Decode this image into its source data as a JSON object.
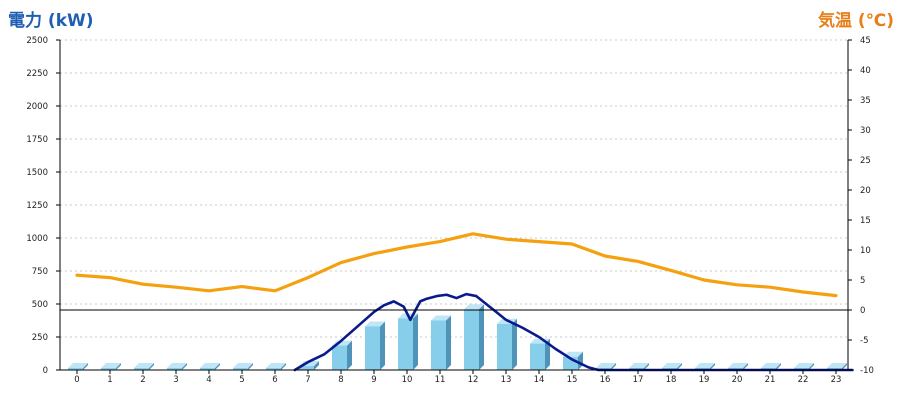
{
  "left_axis_title": "電力 (kW)",
  "right_axis_title": "気温 (℃)",
  "colors": {
    "left_title": "#1f5fb3",
    "right_title": "#e87f1a",
    "bar_front": "#87ceeb",
    "bar_side": "#4f93b8",
    "bar_top": "#bfe6f7",
    "power_line": "#0a1a8c",
    "temperature_line": "#f5a00f",
    "grid": "#c8c8c8"
  },
  "chart_data": {
    "type": "bar",
    "grid": true,
    "categories": [
      "0",
      "1",
      "2",
      "3",
      "4",
      "5",
      "6",
      "7",
      "8",
      "9",
      "10",
      "11",
      "12",
      "13",
      "14",
      "15",
      "16",
      "17",
      "18",
      "19",
      "20",
      "21",
      "22",
      "23"
    ],
    "y_left": {
      "label": "電力 (kW)",
      "lim": [
        0,
        2500
      ],
      "ticks": [
        0,
        250,
        500,
        750,
        1000,
        1250,
        1500,
        1750,
        2000,
        2250,
        2500
      ]
    },
    "y_right": {
      "label": "気温 (℃)",
      "lim": [
        -10,
        45
      ],
      "ticks": [
        -10,
        -5,
        0,
        5,
        10,
        15,
        20,
        25,
        30,
        35,
        40,
        45
      ]
    },
    "series": [
      {
        "kind": "bar",
        "axis": "left",
        "values": [
          0,
          0,
          0,
          0,
          0,
          0,
          0,
          30,
          185,
          330,
          390,
          375,
          460,
          350,
          200,
          100,
          0,
          0,
          0,
          0,
          0,
          0,
          0,
          0
        ]
      },
      {
        "kind": "line",
        "axis": "left",
        "x": [
          6.6,
          7,
          7.5,
          8,
          8.5,
          9,
          9.3,
          9.6,
          9.9,
          10.1,
          10.4,
          10.6,
          10.9,
          11.2,
          11.5,
          11.8,
          12.1,
          12.4,
          12.7,
          13,
          13.5,
          14,
          14.5,
          15,
          15.5,
          15.8,
          16,
          23.5
        ],
        "values": [
          0,
          60,
          120,
          220,
          330,
          440,
          490,
          520,
          480,
          380,
          520,
          540,
          560,
          570,
          545,
          575,
          560,
          500,
          440,
          380,
          320,
          250,
          160,
          80,
          20,
          0,
          0,
          0
        ]
      },
      {
        "kind": "line",
        "axis": "right",
        "values": [
          5.8,
          5.4,
          4.3,
          3.8,
          3.2,
          3.9,
          3.2,
          5.4,
          7.9,
          9.4,
          10.5,
          11.4,
          12.7,
          11.8,
          11.4,
          11.0,
          9.0,
          8.1,
          6.6,
          5.0,
          4.2,
          3.8,
          3.0,
          2.4
        ]
      }
    ]
  }
}
